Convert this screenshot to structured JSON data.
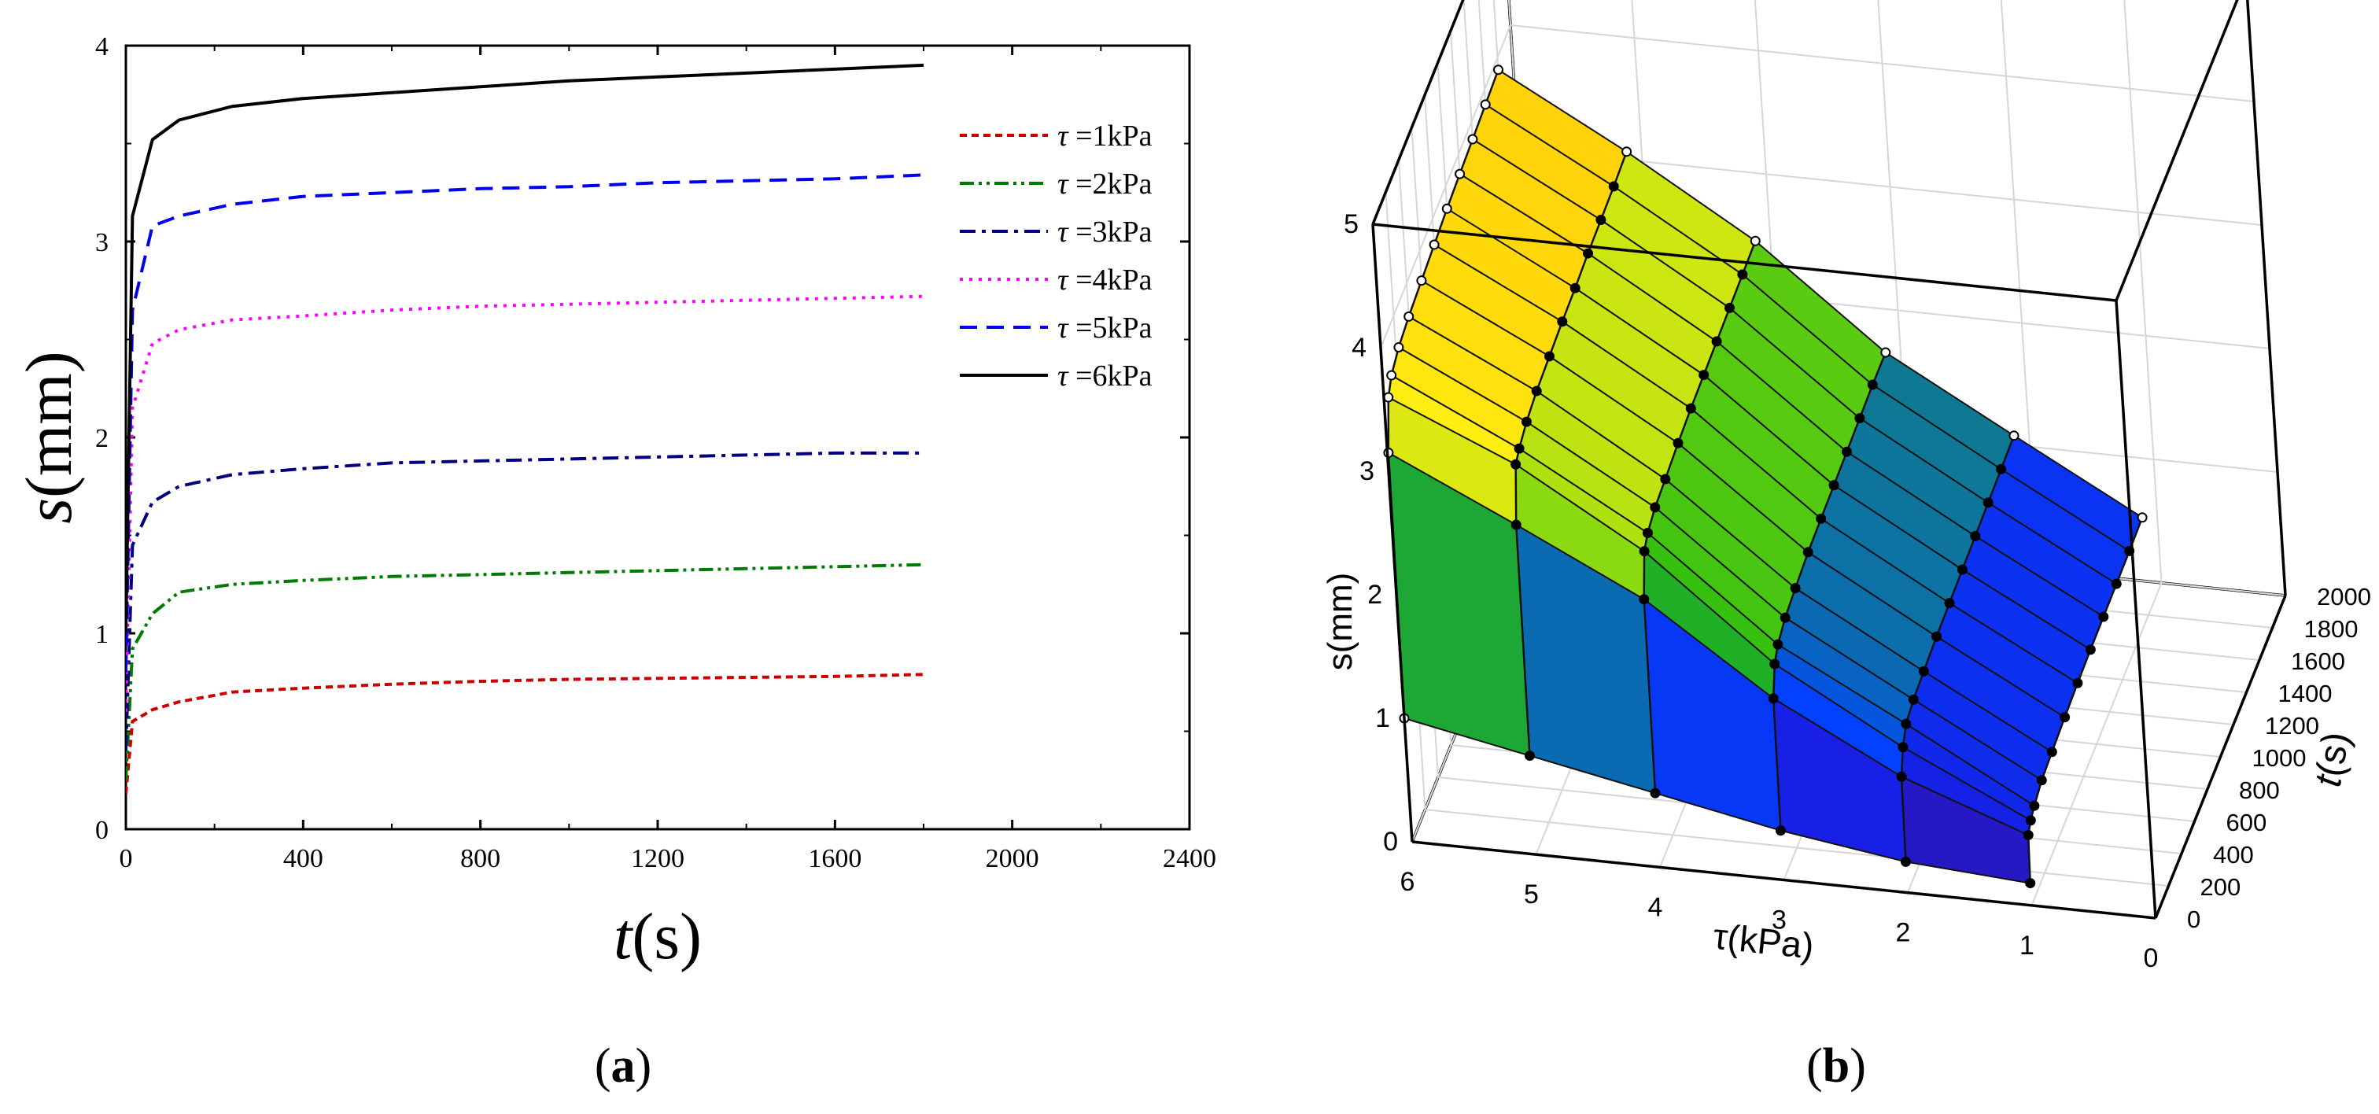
{
  "panel_a": {
    "label_open": "(",
    "label_letter": "a",
    "label_close": ")"
  },
  "panel_b": {
    "label_open": "(",
    "label_letter": "b",
    "label_close": ")"
  },
  "chart_data": [
    {
      "type": "line",
      "panel": "a",
      "title": "",
      "xlabel_italic": "t",
      "xlabel_rest": "(s)",
      "ylabel_italic": "s",
      "ylabel_rest": "(mm)",
      "xlim": [
        0,
        2400
      ],
      "ylim": [
        0,
        4
      ],
      "xticks": [
        0,
        400,
        800,
        1200,
        1600,
        2000,
        2400
      ],
      "yticks": [
        0,
        1,
        2,
        3,
        4
      ],
      "grid": false,
      "legend_position": "top-right",
      "series": [
        {
          "name_symbol": "τ",
          "name_rest": " =1kPa",
          "color": "#cc0000",
          "dash": "short-dash",
          "x": [
            0,
            15,
            60,
            120,
            240,
            400,
            600,
            800,
            1000,
            1200,
            1400,
            1600,
            1800
          ],
          "y": [
            0.18,
            0.55,
            0.61,
            0.65,
            0.7,
            0.72,
            0.74,
            0.755,
            0.765,
            0.77,
            0.775,
            0.78,
            0.79
          ]
        },
        {
          "name_symbol": "τ",
          "name_rest": " =2kPa",
          "color": "#007a00",
          "dash": "dash-dot-dot",
          "x": [
            0,
            15,
            60,
            120,
            240,
            400,
            600,
            800,
            1000,
            1200,
            1400,
            1600,
            1800
          ],
          "y": [
            0.25,
            0.92,
            1.1,
            1.21,
            1.25,
            1.27,
            1.29,
            1.3,
            1.31,
            1.32,
            1.33,
            1.34,
            1.35
          ]
        },
        {
          "name_symbol": "τ",
          "name_rest": " =3kPa",
          "color": "#000080",
          "dash": "dash-dot",
          "x": [
            0,
            15,
            60,
            120,
            240,
            400,
            600,
            800,
            1000,
            1200,
            1400,
            1600,
            1800
          ],
          "y": [
            0.4,
            1.45,
            1.67,
            1.75,
            1.81,
            1.84,
            1.87,
            1.88,
            1.89,
            1.9,
            1.91,
            1.92,
            1.92
          ]
        },
        {
          "name_symbol": "τ",
          "name_rest": " =4kPa",
          "color": "#ff00ff",
          "dash": "dot",
          "x": [
            0,
            15,
            60,
            120,
            240,
            400,
            600,
            800,
            1000,
            1200,
            1400,
            1600,
            1800
          ],
          "y": [
            0.6,
            2.15,
            2.48,
            2.55,
            2.6,
            2.62,
            2.65,
            2.67,
            2.68,
            2.69,
            2.7,
            2.71,
            2.72
          ]
        },
        {
          "name_symbol": "τ",
          "name_rest": " =5kPa",
          "color": "#0000ee",
          "dash": "long-dash",
          "x": [
            0,
            15,
            60,
            120,
            240,
            400,
            600,
            800,
            1000,
            1200,
            1400,
            1600,
            1800
          ],
          "y": [
            0.8,
            2.65,
            3.08,
            3.13,
            3.19,
            3.23,
            3.25,
            3.27,
            3.28,
            3.3,
            3.31,
            3.32,
            3.34
          ]
        },
        {
          "name_symbol": "τ",
          "name_rest": " =6kPa",
          "color": "#000000",
          "dash": "solid",
          "x": [
            0,
            15,
            60,
            120,
            240,
            400,
            600,
            800,
            1000,
            1200,
            1400,
            1600,
            1800
          ],
          "y": [
            1.0,
            3.13,
            3.52,
            3.62,
            3.69,
            3.73,
            3.76,
            3.79,
            3.82,
            3.84,
            3.86,
            3.88,
            3.9
          ]
        }
      ]
    },
    {
      "type": "surface3d",
      "panel": "b",
      "title": "",
      "xlabel": "τ(kPa)",
      "ylabel_italic": "t",
      "ylabel_rest": "(s)",
      "zlabel": "s(mm)",
      "xticks": [
        0,
        1,
        2,
        3,
        4,
        5,
        6
      ],
      "yticks": [
        0,
        200,
        400,
        600,
        800,
        1000,
        1200,
        1400,
        1600,
        1800,
        2000
      ],
      "zticks": [
        0,
        1,
        2,
        3,
        4,
        5
      ],
      "xlim": [
        0,
        6
      ],
      "ylim": [
        0,
        2000
      ],
      "zlim": [
        0,
        5
      ],
      "grid": true,
      "colormap": [
        "#3d1580",
        "#1a1ae0",
        "#0044ff",
        "#22bb11",
        "#99dd11",
        "#ffee11",
        "#ffaa00"
      ],
      "tau": [
        1,
        2,
        3,
        4,
        5,
        6
      ],
      "t": [
        0,
        15,
        60,
        120,
        240,
        400,
        600,
        800,
        1000,
        1200,
        1400,
        1600,
        1800
      ],
      "s": [
        [
          0.18,
          0.55,
          0.61,
          0.65,
          0.7,
          0.72,
          0.74,
          0.755,
          0.765,
          0.77,
          0.775,
          0.78,
          0.79
        ],
        [
          0.25,
          0.92,
          1.1,
          1.21,
          1.25,
          1.27,
          1.29,
          1.3,
          1.31,
          1.32,
          1.33,
          1.34,
          1.35
        ],
        [
          0.4,
          1.45,
          1.67,
          1.75,
          1.81,
          1.84,
          1.87,
          1.88,
          1.89,
          1.9,
          1.91,
          1.92,
          1.92
        ],
        [
          0.6,
          2.15,
          2.48,
          2.55,
          2.6,
          2.62,
          2.65,
          2.67,
          2.68,
          2.69,
          2.7,
          2.71,
          2.72
        ],
        [
          0.8,
          2.65,
          3.08,
          3.13,
          3.19,
          3.23,
          3.25,
          3.27,
          3.28,
          3.3,
          3.31,
          3.32,
          3.34
        ],
        [
          1.0,
          3.13,
          3.52,
          3.62,
          3.69,
          3.73,
          3.76,
          3.79,
          3.82,
          3.84,
          3.86,
          3.88,
          3.9
        ]
      ]
    }
  ]
}
